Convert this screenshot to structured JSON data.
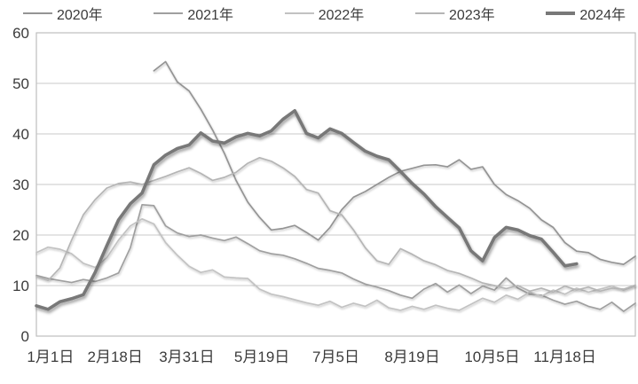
{
  "chart_data": {
    "type": "line",
    "title": "",
    "xlabel": "",
    "ylabel": "",
    "ylim": [
      0,
      60
    ],
    "y_ticks": [
      0,
      10,
      20,
      30,
      40,
      50,
      60
    ],
    "grid": "horizontal",
    "legend_position": "top",
    "x_unit": "weeks_from_jan1",
    "x_range_weeks": [
      0,
      51
    ],
    "x_tick_labels": [
      "1月1日",
      "2月18日",
      "3月31日",
      "5月19日",
      "7月5日",
      "8月19日",
      "10月5日",
      "11月18日"
    ],
    "x_tick_positions_weeks": [
      1.2,
      6.7,
      12.8,
      19.2,
      25.5,
      32.0,
      38.8,
      45.0
    ],
    "axis_text_color": "#3b3b3b",
    "grid_color": "#c9c9c9",
    "border_color": "#bfbfbf",
    "series": [
      {
        "name": "2020年",
        "color": "#949494",
        "width": 1.7,
        "thick": false,
        "values": [
          null,
          null,
          null,
          null,
          null,
          null,
          null,
          null,
          null,
          null,
          52.5,
          54.3,
          50.3,
          48.5,
          44.9,
          40.8,
          36.2,
          30.8,
          26.5,
          23.5,
          21.0,
          21.3,
          21.9,
          20.5,
          19.0,
          21.5,
          25.0,
          27.5,
          28.6,
          30.0,
          31.4,
          32.6,
          33.2,
          33.8,
          33.9,
          33.5,
          34.9,
          33.0,
          33.5,
          30.0,
          28.0,
          26.8,
          25.3,
          23.0,
          21.5,
          18.5,
          16.8,
          16.5,
          15.2,
          14.6,
          14.2,
          15.8
        ]
      },
      {
        "name": "2021年",
        "color": "#9f9f9f",
        "width": 1.7,
        "thick": false,
        "values": [
          12.0,
          11.4,
          11.0,
          10.6,
          11.2,
          10.8,
          11.5,
          12.5,
          17.5,
          26.0,
          25.8,
          21.8,
          20.4,
          19.7,
          20.0,
          19.4,
          18.9,
          19.6,
          18.3,
          16.9,
          16.3,
          16.0,
          15.3,
          14.4,
          13.4,
          13.0,
          12.5,
          11.3,
          10.3,
          9.7,
          9.0,
          8.1,
          7.5,
          9.3,
          10.4,
          8.7,
          10.1,
          8.4,
          9.9,
          9.1,
          11.5,
          9.5,
          8.3,
          8.1,
          7.1,
          6.3,
          6.9,
          5.9,
          5.3,
          6.7,
          4.9,
          6.5
        ]
      },
      {
        "name": "2022年",
        "color": "#c2c2c2",
        "width": 1.7,
        "thick": false,
        "values": [
          16.5,
          17.6,
          17.2,
          16.3,
          14.4,
          13.6,
          15.5,
          19.0,
          21.8,
          23.2,
          22.2,
          18.5,
          16.0,
          13.8,
          12.6,
          13.1,
          11.7,
          11.5,
          11.4,
          9.3,
          8.3,
          7.8,
          7.2,
          6.6,
          6.1,
          6.9,
          5.7,
          6.5,
          5.9,
          7.1,
          5.6,
          5.1,
          5.9,
          5.3,
          6.1,
          5.5,
          5.1,
          6.3,
          7.5,
          6.7,
          8.1,
          7.3,
          8.7,
          7.9,
          9.1,
          8.3,
          9.5,
          8.7,
          9.3,
          9.9,
          9.1,
          9.9
        ]
      },
      {
        "name": "2023年",
        "color": "#b5b5b5",
        "width": 1.7,
        "thick": false,
        "values": [
          11.8,
          11.0,
          13.5,
          19.0,
          24.0,
          27.0,
          29.3,
          30.2,
          30.5,
          30.0,
          30.8,
          31.6,
          32.5,
          33.3,
          32.2,
          30.8,
          31.4,
          32.4,
          34.2,
          35.3,
          34.6,
          33.3,
          31.6,
          29.0,
          28.3,
          24.8,
          24.0,
          21.0,
          17.5,
          14.9,
          14.2,
          17.3,
          16.2,
          14.9,
          14.1,
          13.0,
          12.4,
          11.5,
          10.5,
          10.0,
          9.4,
          10.0,
          8.9,
          9.5,
          8.7,
          9.9,
          9.1,
          9.7,
          8.9,
          9.5,
          9.3,
          10.1
        ]
      },
      {
        "name": "2024年",
        "color": "#787878",
        "width": 3.6,
        "thick": true,
        "values": [
          6.0,
          5.3,
          6.8,
          7.4,
          8.2,
          12.6,
          17.9,
          23.0,
          26.2,
          28.3,
          33.9,
          35.8,
          37.1,
          37.8,
          40.2,
          38.6,
          38.2,
          39.4,
          40.1,
          39.6,
          40.6,
          42.9,
          44.6,
          40.1,
          39.2,
          41.0,
          40.1,
          38.3,
          36.6,
          35.6,
          34.9,
          32.6,
          30.2,
          28.1,
          25.6,
          23.5,
          21.4,
          16.9,
          14.9,
          19.5,
          21.5,
          21.0,
          19.9,
          19.2,
          16.6,
          13.9,
          14.3
        ]
      }
    ]
  }
}
